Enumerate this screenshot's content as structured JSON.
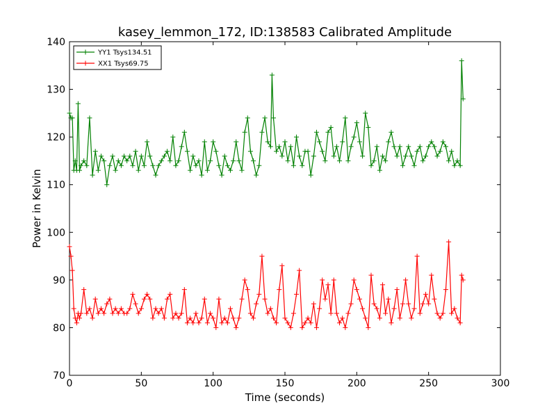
{
  "chart_data": {
    "type": "line",
    "title": "kasey_lemmon_172, ID:138583 Calibrated Amplitude",
    "xlabel": "Time (seconds)",
    "ylabel": "Power in Kelvin",
    "xlim": [
      0,
      300
    ],
    "ylim": [
      70,
      140
    ],
    "xticks": [
      0,
      50,
      100,
      150,
      200,
      250,
      300
    ],
    "yticks": [
      70,
      80,
      90,
      100,
      110,
      120,
      130,
      140
    ],
    "grid": false,
    "legend_position": "top-left",
    "marker": "+",
    "series": [
      {
        "name": "YY1 Tsys134.51",
        "color": "#008000",
        "x": [
          0,
          1,
          2,
          3,
          4,
          5,
          6,
          7,
          8,
          10,
          12,
          14,
          16,
          18,
          20,
          22,
          24,
          26,
          28,
          30,
          32,
          34,
          36,
          38,
          40,
          42,
          44,
          46,
          48,
          50,
          52,
          54,
          56,
          58,
          60,
          62,
          64,
          66,
          68,
          70,
          72,
          74,
          76,
          78,
          80,
          82,
          84,
          86,
          88,
          90,
          92,
          94,
          96,
          98,
          100,
          102,
          104,
          106,
          108,
          110,
          112,
          114,
          116,
          118,
          120,
          122,
          124,
          126,
          128,
          130,
          132,
          134,
          136,
          138,
          140,
          141,
          142,
          144,
          146,
          148,
          150,
          152,
          154,
          156,
          158,
          160,
          162,
          164,
          166,
          168,
          170,
          172,
          174,
          176,
          178,
          180,
          182,
          184,
          186,
          188,
          190,
          192,
          194,
          196,
          198,
          200,
          202,
          204,
          206,
          208,
          210,
          212,
          214,
          216,
          218,
          220,
          222,
          224,
          226,
          228,
          230,
          232,
          234,
          236,
          238,
          240,
          242,
          244,
          246,
          248,
          250,
          252,
          254,
          256,
          258,
          260,
          262,
          264,
          266,
          268,
          270,
          272,
          273,
          274
        ],
        "values": [
          125,
          124,
          124,
          113,
          115,
          113,
          127,
          113,
          114,
          115,
          114,
          124,
          112,
          117,
          113,
          116,
          115,
          110,
          114,
          116,
          113,
          115,
          114,
          116,
          115,
          116,
          114,
          117,
          113,
          116,
          114,
          119,
          116,
          114,
          112,
          114,
          115,
          116,
          117,
          115,
          120,
          114,
          115,
          118,
          121,
          117,
          113,
          116,
          114,
          115,
          112,
          119,
          113,
          115,
          119,
          117,
          114,
          112,
          116,
          114,
          113,
          115,
          119,
          115,
          113,
          121,
          124,
          117,
          115,
          112,
          114,
          121,
          124,
          119,
          118,
          133,
          124,
          117,
          118,
          116,
          119,
          115,
          118,
          114,
          120,
          116,
          114,
          117,
          117,
          112,
          116,
          121,
          119,
          117,
          115,
          121,
          122,
          116,
          118,
          115,
          119,
          124,
          115,
          118,
          120,
          123,
          119,
          116,
          125,
          122,
          114,
          115,
          118,
          113,
          116,
          115,
          119,
          121,
          118,
          116,
          118,
          114,
          116,
          118,
          116,
          114,
          117,
          118,
          115,
          116,
          118,
          119,
          118,
          116,
          117,
          119,
          118,
          115,
          117,
          114,
          115,
          114,
          136,
          128
        ],
        "axis": "y"
      },
      {
        "name": "XX1 Tsys69.75",
        "color": "#ff0000",
        "x": [
          0,
          1,
          2,
          3,
          4,
          5,
          6,
          7,
          8,
          10,
          12,
          14,
          16,
          18,
          20,
          22,
          24,
          26,
          28,
          30,
          32,
          34,
          36,
          38,
          40,
          42,
          44,
          46,
          48,
          50,
          52,
          54,
          56,
          58,
          60,
          62,
          64,
          66,
          68,
          70,
          72,
          74,
          76,
          78,
          80,
          82,
          84,
          86,
          88,
          90,
          92,
          94,
          96,
          98,
          100,
          102,
          104,
          106,
          108,
          110,
          112,
          114,
          116,
          118,
          120,
          122,
          124,
          126,
          128,
          130,
          132,
          134,
          136,
          138,
          140,
          142,
          144,
          146,
          148,
          150,
          152,
          154,
          156,
          158,
          160,
          162,
          164,
          166,
          168,
          170,
          172,
          174,
          176,
          178,
          180,
          182,
          184,
          186,
          188,
          190,
          192,
          194,
          196,
          198,
          200,
          202,
          204,
          206,
          208,
          210,
          212,
          214,
          216,
          218,
          220,
          222,
          224,
          226,
          228,
          230,
          232,
          234,
          236,
          238,
          240,
          242,
          244,
          246,
          248,
          250,
          252,
          254,
          256,
          258,
          260,
          262,
          264,
          266,
          268,
          270,
          272,
          273,
          274
        ],
        "values": [
          97,
          95,
          92,
          84,
          82,
          81,
          83,
          82,
          83,
          88,
          83,
          84,
          82,
          86,
          83,
          84,
          83,
          85,
          86,
          83,
          84,
          83,
          84,
          83,
          83,
          84,
          87,
          85,
          83,
          84,
          86,
          87,
          86,
          82,
          84,
          83,
          84,
          82,
          86,
          87,
          82,
          83,
          82,
          83,
          88,
          81,
          82,
          81,
          83,
          81,
          82,
          86,
          81,
          83,
          82,
          80,
          86,
          81,
          82,
          81,
          84,
          82,
          80,
          82,
          86,
          90,
          88,
          83,
          82,
          85,
          87,
          95,
          86,
          83,
          84,
          82,
          81,
          88,
          93,
          82,
          81,
          80,
          83,
          87,
          92,
          80,
          81,
          82,
          81,
          85,
          80,
          84,
          90,
          86,
          89,
          83,
          90,
          83,
          81,
          82,
          80,
          83,
          85,
          90,
          88,
          86,
          84,
          82,
          80,
          91,
          85,
          84,
          82,
          89,
          83,
          86,
          81,
          84,
          88,
          82,
          85,
          90,
          85,
          82,
          84,
          95,
          83,
          85,
          87,
          85,
          91,
          86,
          83,
          82,
          83,
          88,
          98,
          83,
          84,
          82,
          81,
          91,
          90
        ],
        "axis": "y"
      }
    ]
  }
}
